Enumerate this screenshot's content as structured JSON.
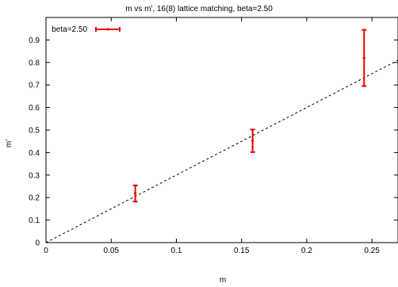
{
  "chart_data": {
    "type": "scatter",
    "title": "m vs m', 16(8) lattice matching, beta=2.50",
    "xlabel": "m",
    "ylabel": "m'",
    "xlim": [
      0,
      0.27
    ],
    "ylim": [
      0,
      1.0
    ],
    "x_ticks": [
      0,
      0.05,
      0.1,
      0.15,
      0.2,
      0.25
    ],
    "x_tick_labels": [
      "0",
      "0.05",
      "0.1",
      "0.15",
      "0.2",
      "0.25"
    ],
    "y_ticks": [
      0,
      0.1,
      0.2,
      0.3,
      0.4,
      0.5,
      0.6,
      0.7,
      0.8,
      0.9
    ],
    "y_tick_labels": [
      "0",
      "0.1",
      "0.2",
      "0.3",
      "0.4",
      "0.5",
      "0.6",
      "0.7",
      "0.8",
      "0.9"
    ],
    "grid": false,
    "legend_position": "top-left",
    "series": [
      {
        "name": "beta=2.50",
        "color": "#ee0000",
        "style": "errorbars",
        "points": [
          {
            "x": 0.0685,
            "y": 0.218,
            "ylow": 0.182,
            "yhigh": 0.254
          },
          {
            "x": 0.1585,
            "y": 0.452,
            "ylow": 0.402,
            "yhigh": 0.502
          },
          {
            "x": 0.244,
            "y": 0.82,
            "ylow": 0.695,
            "yhigh": 0.945
          }
        ]
      }
    ],
    "reference_line": {
      "style": "dashed",
      "color": "#000000",
      "slope": 3.0,
      "intercept": 0.0
    }
  }
}
